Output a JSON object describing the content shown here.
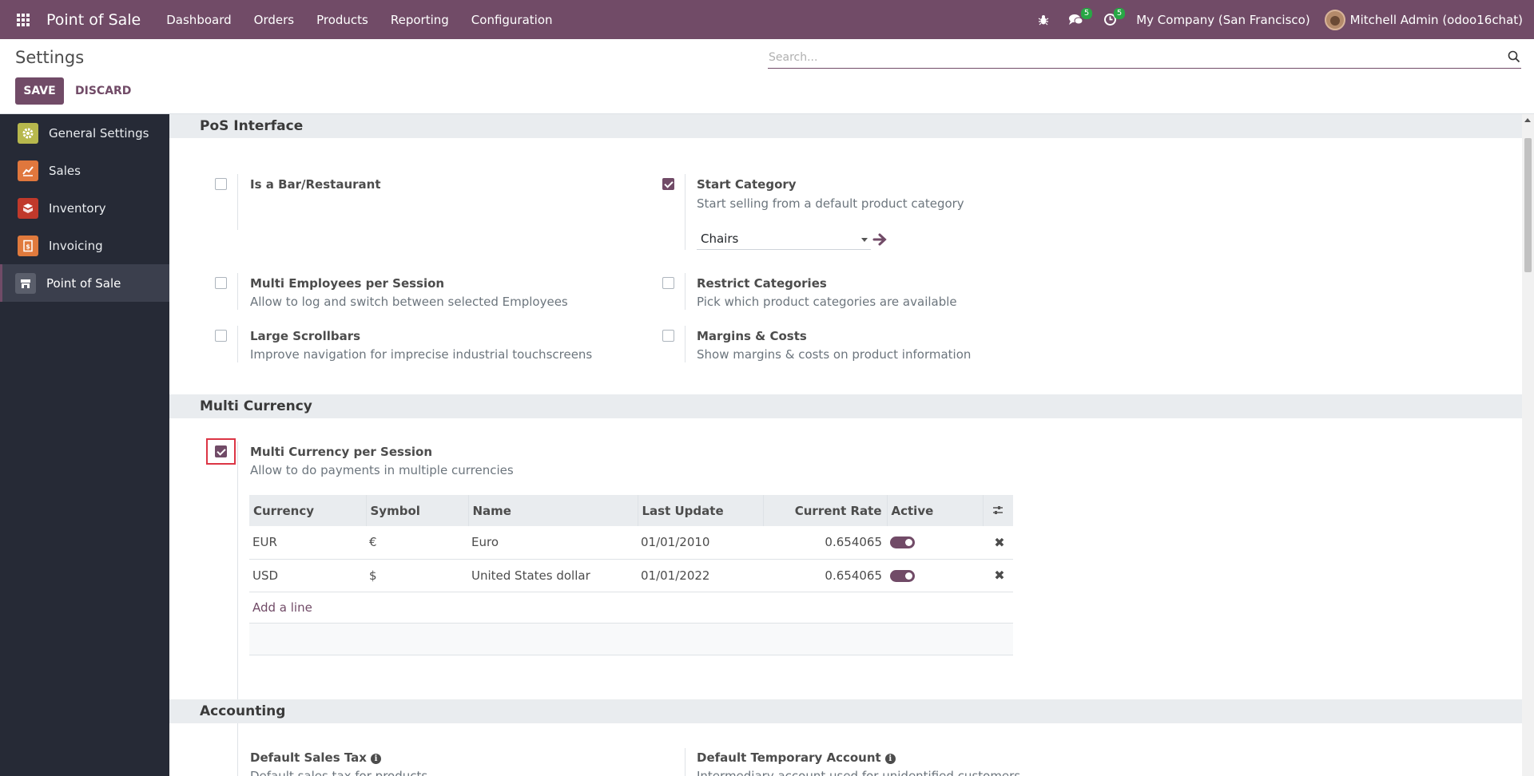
{
  "navbar": {
    "brand": "Point of Sale",
    "menu": [
      "Dashboard",
      "Orders",
      "Products",
      "Reporting",
      "Configuration"
    ],
    "messages_badge": "5",
    "activities_badge": "5",
    "company": "My Company (San Francisco)",
    "user": "Mitchell Admin (odoo16chat)"
  },
  "control": {
    "title": "Settings",
    "save_label": "SAVE",
    "discard_label": "DISCARD",
    "search_placeholder": "Search..."
  },
  "sidebar": {
    "items": [
      {
        "label": "General Settings",
        "icon": "gear-icon",
        "color": "#b7b84d"
      },
      {
        "label": "Sales",
        "icon": "chart-icon",
        "color": "#e0773d"
      },
      {
        "label": "Inventory",
        "icon": "box-icon",
        "color": "#c0392b"
      },
      {
        "label": "Invoicing",
        "icon": "invoice-icon",
        "color": "#e07a3d"
      },
      {
        "label": "Point of Sale",
        "icon": "store-icon",
        "color": "#5a5e6b"
      }
    ]
  },
  "sections": {
    "pos_interface": "PoS Interface",
    "multi_currency": "Multi Currency",
    "accounting": "Accounting"
  },
  "settings": {
    "bar_restaurant": {
      "title": "Is a Bar/Restaurant",
      "checked": false
    },
    "start_category": {
      "title": "Start Category",
      "desc": "Start selling from a default product category",
      "checked": true,
      "value": "Chairs"
    },
    "multi_employees": {
      "title": "Multi Employees per Session",
      "desc": "Allow to log and switch between selected Employees",
      "checked": false
    },
    "restrict_categories": {
      "title": "Restrict Categories",
      "desc": "Pick which product categories are available",
      "checked": false
    },
    "large_scrollbars": {
      "title": "Large Scrollbars",
      "desc": "Improve navigation for imprecise industrial touchscreens",
      "checked": false
    },
    "margins_costs": {
      "title": "Margins & Costs",
      "desc": "Show margins & costs on product information",
      "checked": false
    },
    "multi_currency": {
      "title": "Multi Currency per Session",
      "desc": "Allow to do payments in multiple currencies",
      "checked": true
    },
    "default_sales_tax": {
      "title": "Default Sales Tax",
      "desc": "Default sales tax for products"
    },
    "default_temp_account": {
      "title": "Default Temporary Account",
      "desc": "Intermediary account used for unidentified customers."
    }
  },
  "currency_table": {
    "headers": [
      "Currency",
      "Symbol",
      "Name",
      "Last Update",
      "Current Rate",
      "Active"
    ],
    "rows": [
      {
        "currency": "EUR",
        "symbol": "€",
        "name": "Euro",
        "last_update": "01/01/2010",
        "rate": "0.654065",
        "active": true
      },
      {
        "currency": "USD",
        "symbol": "$",
        "name": "United States dollar",
        "last_update": "01/01/2022",
        "rate": "0.654065",
        "active": true
      }
    ],
    "add_line": "Add a line"
  },
  "colors": {
    "brand": "#714B67",
    "sidebar_bg": "#262a36",
    "badge": "#28a745"
  }
}
